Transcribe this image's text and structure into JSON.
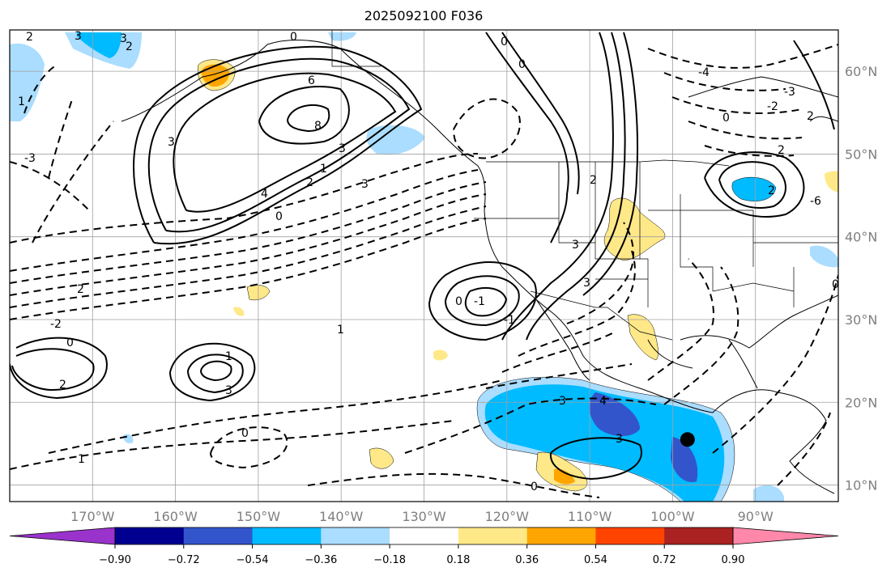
{
  "map": {
    "title": "2025092100 F036",
    "lon_labels": [
      "170°W",
      "160°W",
      "150°W",
      "140°W",
      "130°W",
      "120°W",
      "110°W",
      "100°W",
      "90°W"
    ],
    "lat_labels": [
      "60°N",
      "50°N",
      "40°N",
      "30°N",
      "20°N",
      "10°N"
    ],
    "extent": {
      "lon_min": -180,
      "lon_max": -80,
      "lat_min": 8,
      "lat_max": 65
    },
    "gridlines": true,
    "marker": {
      "name": "storm-center",
      "lon": -98.2,
      "lat": 15.5,
      "color": "#000000"
    },
    "contour_labels": [
      "2",
      "3",
      "0",
      "6",
      "8",
      "3",
      "4",
      "3",
      "2",
      "1",
      "0",
      "3",
      "-3",
      "2",
      "1",
      "3",
      "2",
      "-2",
      "0",
      "2",
      "1",
      "3",
      "0",
      "1",
      "1",
      "0",
      "-1",
      "-1",
      "0",
      "3",
      "4",
      "3",
      "2",
      "2",
      "-6",
      "-4",
      "-3",
      "-2",
      "0",
      "2",
      "3",
      "3",
      "2",
      "0",
      "0",
      "0"
    ]
  },
  "colorbar": {
    "ticks": [
      "−0.90",
      "−0.72",
      "−0.54",
      "−0.36",
      "−0.18",
      "0.18",
      "0.36",
      "0.54",
      "0.72",
      "0.90"
    ],
    "colors": [
      "#9933cc",
      "#000090",
      "#3355cc",
      "#00bbff",
      "#aaddff",
      "#ffffff",
      "#ffe888",
      "#ffa500",
      "#ff4400",
      "#aa2222",
      "#ff88aa"
    ]
  }
}
